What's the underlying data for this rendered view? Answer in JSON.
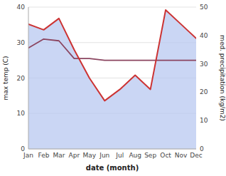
{
  "chart_data": {
    "type": "line",
    "categories": [
      "Jan",
      "Feb",
      "Mar",
      "Apr",
      "May",
      "Jun",
      "Jul",
      "Aug",
      "Sep",
      "Oct",
      "Nov",
      "Dec"
    ],
    "series": [
      {
        "type": "area",
        "axis": "y2",
        "color": "#b8c8f0",
        "values": [
          44.0,
          42.0,
          46.0,
          35.0,
          25.0,
          17.0,
          21.0,
          26.0,
          21.0,
          49.0,
          44.0,
          39.0
        ]
      },
      {
        "type": "line",
        "color": "#8b4560",
        "values": [
          28.5,
          31.0,
          30.5,
          25.5,
          25.5,
          25.0,
          25.0,
          25.0,
          25.0,
          25.0,
          25.0,
          25.0
        ]
      },
      {
        "type": "line",
        "axis": "y2",
        "color": "#cc3333",
        "values": [
          44.0,
          42.0,
          46.0,
          35.0,
          25.0,
          17.0,
          21.0,
          26.0,
          21.0,
          49.0,
          44.0,
          39.0
        ]
      }
    ],
    "xlabel": "date (month)",
    "ylabel": "max temp (C)",
    "y2label": "med. precipitation (kg/m2)",
    "ylim": [
      0,
      40
    ],
    "yticks": [
      0,
      10,
      20,
      30,
      40
    ],
    "y2lim": [
      0,
      50
    ],
    "y2ticks": [
      0,
      10,
      20,
      30,
      40,
      50
    ],
    "grid": true
  }
}
